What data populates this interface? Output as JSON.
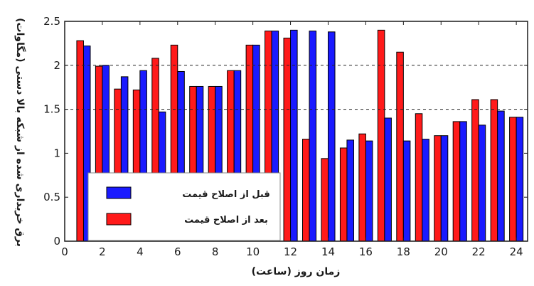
{
  "chart_data": {
    "type": "bar",
    "title": "",
    "xlabel": "زمان روز (ساعت)",
    "ylabel": "برق خریداری شده از شبکه بالا دستی (مگاوات)",
    "xlim": [
      0,
      24.6
    ],
    "ylim": [
      0,
      2.5
    ],
    "xticks": [
      0,
      2,
      4,
      6,
      8,
      10,
      12,
      14,
      16,
      18,
      20,
      22,
      24
    ],
    "yticks": [
      0,
      0.5,
      1,
      1.5,
      2,
      2.5
    ],
    "ytick_labels": [
      "0",
      "0.5",
      "1",
      "1.5",
      "2",
      "2.5"
    ],
    "grid": "dashed horizontal lines at 1.5 and 2",
    "legend_position": "lower-left",
    "categories": [
      1,
      2,
      3,
      4,
      5,
      6,
      7,
      8,
      9,
      10,
      11,
      12,
      13,
      14,
      15,
      16,
      17,
      18,
      19,
      20,
      21,
      22,
      23,
      24
    ],
    "series": [
      {
        "name": "بعد از اصلاح قیمت",
        "color": "#ff1a1a",
        "values": [
          2.28,
          1.99,
          1.73,
          1.72,
          2.08,
          2.23,
          1.76,
          1.76,
          1.94,
          2.23,
          2.39,
          2.31,
          1.16,
          0.94,
          1.06,
          1.22,
          2.4,
          2.15,
          1.45,
          1.2,
          1.36,
          1.61,
          1.61,
          1.41
        ]
      },
      {
        "name": "قبل از اصلاح قیمت",
        "color": "#1a1aff",
        "values": [
          2.22,
          2.0,
          1.87,
          1.94,
          1.47,
          1.93,
          1.76,
          1.76,
          1.94,
          2.23,
          2.39,
          2.4,
          2.39,
          2.38,
          1.15,
          1.14,
          1.4,
          1.14,
          1.16,
          1.2,
          1.36,
          1.32,
          1.48,
          1.41
        ]
      }
    ]
  }
}
